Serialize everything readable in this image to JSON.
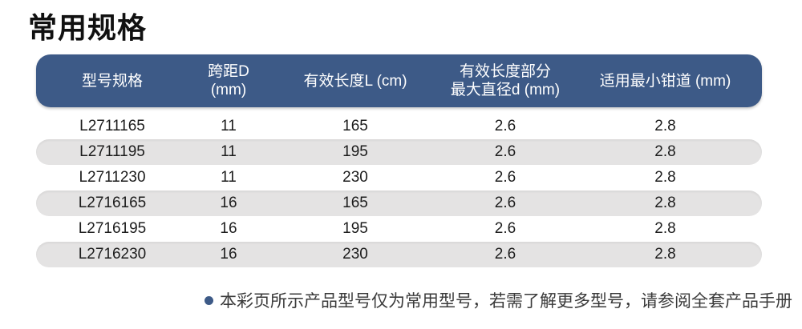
{
  "page": {
    "title": "常用规格"
  },
  "colors": {
    "header_bg": "#3D5A87",
    "header_text": "#FFFFFF",
    "alt_row_bg": "#E4E3E3",
    "body_text": "#1C1C1C",
    "bullet": "#3D5A87"
  },
  "table": {
    "headers": [
      "型号规格",
      "跨距D (mm)",
      "有效长度L (cm)",
      "有效长度部分\n最大直径d (mm)",
      "适用最小钳道 (mm)"
    ],
    "rows": [
      [
        "L2711165",
        "11",
        "165",
        "2.6",
        "2.8"
      ],
      [
        "L2711195",
        "11",
        "195",
        "2.6",
        "2.8"
      ],
      [
        "L2711230",
        "11",
        "230",
        "2.6",
        "2.8"
      ],
      [
        "L2716165",
        "16",
        "165",
        "2.6",
        "2.8"
      ],
      [
        "L2716195",
        "16",
        "195",
        "2.6",
        "2.8"
      ],
      [
        "L2716230",
        "16",
        "230",
        "2.6",
        "2.8"
      ]
    ]
  },
  "footnote": {
    "text": "本彩页所示产品型号仅为常用型号，若需了解更多型号，请参阅全套产品手册"
  }
}
